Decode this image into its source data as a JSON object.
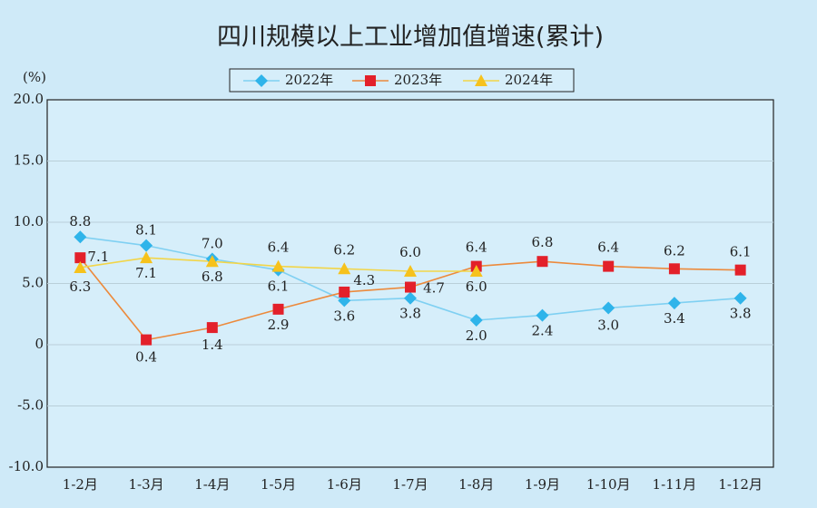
{
  "chart_data": {
    "type": "line",
    "title": "四川规模以上工业增加值增速(累计)",
    "y_label": "(%)",
    "categories": [
      "1-2月",
      "1-3月",
      "1-4月",
      "1-5月",
      "1-6月",
      "1-7月",
      "1-8月",
      "1-9月",
      "1-10月",
      "1-11月",
      "1-12月"
    ],
    "series": [
      {
        "name": "2022年",
        "color": "#2fb4ea",
        "line_color": "#7fd0f2",
        "marker": "diamond",
        "values": [
          8.8,
          8.1,
          7.0,
          6.1,
          3.6,
          3.8,
          2.0,
          2.4,
          3.0,
          3.4,
          3.8
        ],
        "value_labels": [
          "8.8",
          "8.1",
          "7.0",
          "6.1",
          "3.6",
          "3.8",
          "2.0",
          "2.4",
          "3.0",
          "3.4",
          "3.8"
        ]
      },
      {
        "name": "2023年",
        "color": "#e3202a",
        "line_color": "#ec8a3c",
        "marker": "square",
        "values": [
          7.1,
          0.4,
          1.4,
          2.9,
          4.3,
          4.7,
          6.4,
          6.8,
          6.4,
          6.2,
          6.1
        ],
        "value_labels": [
          "7.1",
          "0.4",
          "1.4",
          "2.9",
          "4.3",
          "4.7",
          "6.4",
          "6.8",
          "6.4",
          "6.2",
          "6.1"
        ]
      },
      {
        "name": "2024年",
        "color": "#f6c21c",
        "line_color": "#f2d548",
        "marker": "triangle",
        "values": [
          6.3,
          7.1,
          6.8,
          6.4,
          6.2,
          6.0,
          6.0,
          null,
          null,
          null,
          null
        ],
        "value_labels": [
          "6.3",
          "7.1",
          "6.8",
          "6.4",
          "6.2",
          "6.0",
          "6.0",
          null,
          null,
          null,
          null
        ]
      }
    ],
    "ylim": [
      -10,
      20
    ],
    "yticks": [
      {
        "value": -10,
        "label": "-10.0"
      },
      {
        "value": -5,
        "label": "-5.0"
      },
      0,
      {
        "value": 5,
        "label": "5.0"
      },
      {
        "value": 10,
        "label": "10.0"
      },
      {
        "value": 15,
        "label": "15.0"
      },
      {
        "value": 20,
        "label": "20.0"
      }
    ],
    "grid": true
  }
}
